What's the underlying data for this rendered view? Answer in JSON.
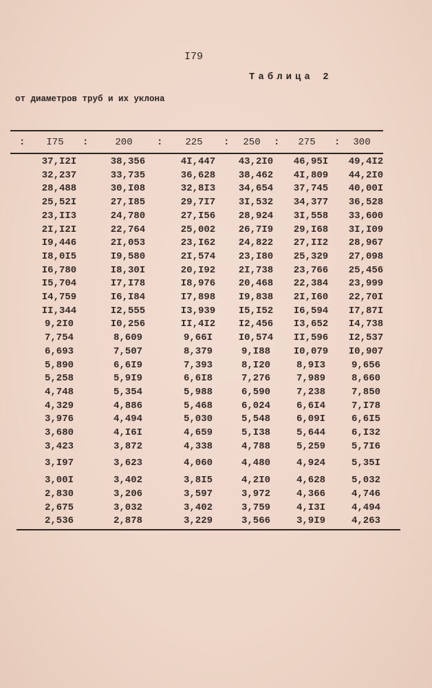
{
  "page_number": "I79",
  "table_label": "Таблица 2",
  "caption": "от диаметров труб и их уклона",
  "columns": [
    "I75",
    "200",
    "225",
    "250",
    "275",
    "300"
  ],
  "rows": [
    [
      "37,I2I",
      "38,356",
      "4I,447",
      "43,2I0",
      "46,95I",
      "49,4I2"
    ],
    [
      "32,237",
      "33,735",
      "36,628",
      "38,462",
      "4I,809",
      "44,2I0"
    ],
    [
      "28,488",
      "30,I08",
      "32,8I3",
      "34,654",
      "37,745",
      "40,00I"
    ],
    [
      "25,52I",
      "27,I85",
      "29,7I7",
      "3I,532",
      "34,377",
      "36,528"
    ],
    [
      "23,II3",
      "24,780",
      "27,I56",
      "28,924",
      "3I,558",
      "33,600"
    ],
    [
      "2I,I2I",
      "22,764",
      "25,002",
      "26,7I9",
      "29,I68",
      "3I,I09"
    ],
    [
      "I9,446",
      "2I,053",
      "23,I62",
      "24,822",
      "27,II2",
      "28,967"
    ],
    [
      "I8,0I5",
      "I9,580",
      "2I,574",
      "23,I80",
      "25,329",
      "27,098"
    ],
    [
      "I6,780",
      "I8,30I",
      "20,I92",
      "2I,738",
      "23,766",
      "25,456"
    ],
    [
      "I5,704",
      "I7,I78",
      "I8,976",
      "20,468",
      "22,384",
      "23,999"
    ],
    [
      "I4,759",
      "I6,I84",
      "I7,898",
      "I9,838",
      "2I,I60",
      "22,70I"
    ],
    [
      "II,344",
      "I2,555",
      "I3,939",
      "I5,I52",
      "I6,594",
      "I7,87I"
    ],
    [
      "9,2I0",
      "I0,256",
      "II,4I2",
      "I2,456",
      "I3,652",
      "I4,738"
    ],
    [
      "7,754",
      "8,609",
      "9,66I",
      "I0,574",
      "II,596",
      "I2,537"
    ],
    [
      "6,693",
      "7,507",
      "8,379",
      "9,I88",
      "I0,079",
      "I0,907"
    ],
    [
      "5,890",
      "6,6I9",
      "7,393",
      "8,I20",
      "8,9I3",
      "9,656"
    ],
    [
      "5,258",
      "5,9I9",
      "6,6I8",
      "7,276",
      "7,989",
      "8,660"
    ],
    [
      "4,748",
      "5,354",
      "5,988",
      "6,590",
      "7,238",
      "7,850"
    ],
    [
      "4,329",
      "4,886",
      "5,468",
      "6,024",
      "6,6I4",
      "7,I78"
    ],
    [
      "3,976",
      "4,494",
      "5,030",
      "5,548",
      "6,09I",
      "6,6I5"
    ],
    [
      "3,680",
      "4,I6I",
      "4,659",
      "5,I38",
      "5,644",
      "6,I32"
    ],
    [
      "3,423",
      "3,872",
      "4,338",
      "4,788",
      "5,259",
      "5,7I6"
    ],
    [
      "3,I97",
      "3,623",
      "4,060",
      "4,480",
      "4,924",
      "5,35I"
    ],
    [
      "3,00I",
      "3,402",
      "3,8I5",
      "4,2I0",
      "4,628",
      "5,032"
    ],
    [
      "2,830",
      "3,206",
      "3,597",
      "3,972",
      "4,366",
      "4,746"
    ],
    [
      "2,675",
      "3,032",
      "3,402",
      "3,759",
      "4,I3I",
      "4,494"
    ],
    [
      "2,536",
      "2,878",
      "3,229",
      "3,566",
      "3,9I9",
      "4,263"
    ]
  ]
}
